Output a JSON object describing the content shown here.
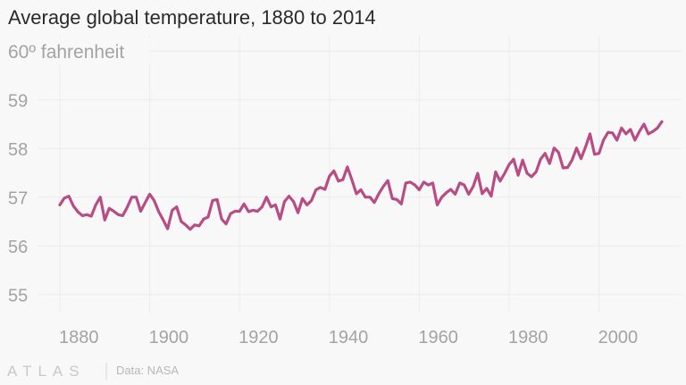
{
  "chart_data": {
    "type": "line",
    "title": "Average global temperature, 1880 to 2014",
    "ylabel": "60º fahrenheit",
    "xlabel": "",
    "xlim": [
      1880,
      2014
    ],
    "ylim": [
      55,
      60
    ],
    "yticks": [
      55,
      56,
      57,
      58,
      59
    ],
    "xticks": [
      1880,
      1900,
      1920,
      1940,
      1960,
      1980,
      2000
    ],
    "grid": true,
    "line_color": "#b84d86",
    "x_start": 1880,
    "values": [
      56.84,
      56.98,
      57.02,
      56.82,
      56.7,
      56.62,
      56.64,
      56.61,
      56.84,
      57.0,
      56.53,
      56.77,
      56.71,
      56.64,
      56.62,
      56.79,
      57.0,
      57.0,
      56.71,
      56.89,
      57.06,
      56.93,
      56.7,
      56.53,
      56.35,
      56.73,
      56.8,
      56.5,
      56.43,
      56.34,
      56.43,
      56.41,
      56.55,
      56.59,
      56.93,
      56.95,
      56.55,
      56.45,
      56.66,
      56.71,
      56.71,
      56.86,
      56.7,
      56.73,
      56.71,
      56.8,
      57.0,
      56.8,
      56.84,
      56.55,
      56.91,
      57.02,
      56.91,
      56.68,
      56.97,
      56.84,
      56.93,
      57.15,
      57.2,
      57.16,
      57.43,
      57.54,
      57.33,
      57.36,
      57.62,
      57.36,
      57.07,
      57.15,
      57.0,
      57.0,
      56.89,
      57.07,
      57.22,
      57.34,
      56.97,
      56.95,
      56.86,
      57.29,
      57.31,
      57.25,
      57.15,
      57.31,
      57.25,
      57.29,
      56.84,
      57.0,
      57.09,
      57.16,
      57.06,
      57.29,
      57.25,
      57.06,
      57.22,
      57.49,
      57.07,
      57.18,
      57.02,
      57.52,
      57.33,
      57.49,
      57.67,
      57.78,
      57.45,
      57.76,
      57.49,
      57.42,
      57.52,
      57.78,
      57.9,
      57.69,
      58.01,
      57.92,
      57.6,
      57.61,
      57.76,
      58.01,
      57.79,
      58.03,
      58.3,
      57.88,
      57.9,
      58.17,
      58.33,
      58.32,
      58.17,
      58.42,
      58.3,
      58.39,
      58.17,
      58.35,
      58.5,
      58.3,
      58.35,
      58.42,
      58.55
    ]
  },
  "footer": {
    "logo": "ATLAS",
    "source": "Data: NASA"
  }
}
